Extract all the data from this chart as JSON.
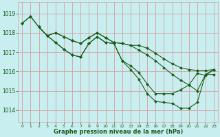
{
  "bg_color": "#c8eef0",
  "grid_color": "#d4a0a0",
  "line_color": "#1a5c1a",
  "marker_color": "#1a5c1a",
  "xlabel": "Graphe pression niveau de la mer (hPa)",
  "xlabel_color": "#1a5c1a",
  "xlim": [
    -0.5,
    23.5
  ],
  "ylim": [
    1013.4,
    1019.6
  ],
  "yticks": [
    1014,
    1015,
    1016,
    1017,
    1018,
    1019
  ],
  "xticks": [
    0,
    1,
    2,
    3,
    4,
    5,
    6,
    7,
    8,
    9,
    10,
    11,
    12,
    13,
    14,
    15,
    16,
    17,
    18,
    19,
    20,
    21,
    22,
    23
  ],
  "lines": [
    {
      "x": [
        0,
        1,
        2,
        3,
        4,
        5,
        6,
        7,
        8,
        9,
        10,
        11,
        12,
        13,
        14,
        15,
        16,
        17,
        18,
        19,
        20,
        21,
        22,
        23
      ],
      "y": [
        1018.5,
        1018.85,
        1018.3,
        1017.85,
        1017.5,
        1017.15,
        1016.85,
        1016.75,
        1017.45,
        1017.8,
        1017.5,
        1017.45,
        1016.55,
        1016.3,
        1015.95,
        1015.35,
        1014.85,
        1014.85,
        1014.85,
        1015.05,
        1015.3,
        1015.9,
        1015.8,
        1016.1
      ]
    },
    {
      "x": [
        0,
        1,
        2,
        3,
        4,
        5,
        6,
        7,
        8,
        9,
        10,
        11,
        12,
        13,
        14,
        15,
        16,
        17,
        18,
        19,
        20,
        21,
        22,
        23
      ],
      "y": [
        1018.5,
        1018.85,
        1018.3,
        1017.85,
        1018.0,
        1017.8,
        1017.6,
        1017.45,
        1017.75,
        1018.0,
        1017.75,
        1017.5,
        1017.45,
        1017.35,
        1017.35,
        1017.2,
        1016.95,
        1016.65,
        1016.4,
        1016.2,
        1016.1,
        1016.05,
        1016.05,
        1016.1
      ]
    },
    {
      "x": [
        2,
        3,
        4,
        5,
        6,
        7,
        8,
        9,
        10,
        11,
        12,
        13,
        14,
        15,
        16,
        17,
        18,
        19,
        20,
        21,
        22,
        23
      ],
      "y": [
        1018.3,
        1017.85,
        1017.5,
        1017.15,
        1016.85,
        1016.75,
        1017.45,
        1017.8,
        1017.5,
        1017.45,
        1016.55,
        1016.1,
        1015.6,
        1014.85,
        1014.45,
        1014.4,
        1014.35,
        1014.1,
        1014.1,
        1014.4,
        1015.85,
        1015.85
      ]
    },
    {
      "x": [
        2,
        3,
        4,
        5,
        6,
        7,
        8,
        9,
        10,
        11,
        12,
        13,
        14,
        15,
        16,
        17,
        18,
        19,
        20,
        21,
        22,
        23
      ],
      "y": [
        1018.3,
        1017.85,
        1018.0,
        1017.8,
        1017.6,
        1017.45,
        1017.75,
        1018.0,
        1017.75,
        1017.5,
        1017.45,
        1017.35,
        1017.1,
        1016.85,
        1016.55,
        1016.2,
        1015.85,
        1015.55,
        1015.3,
        1015.0,
        1015.85,
        1016.1
      ]
    }
  ]
}
